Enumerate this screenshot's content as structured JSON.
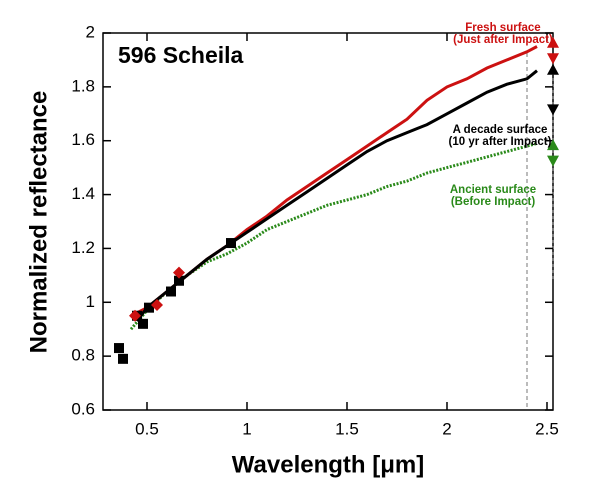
{
  "chart_data": {
    "type": "line",
    "title": "596 Scheila",
    "x_label": "Wavelength [μm]",
    "y_label": "Normalized reflectance",
    "xlim": [
      0.28,
      2.53
    ],
    "ylim": [
      0.6,
      2
    ],
    "xticks": [
      0.5,
      1,
      1.5,
      2,
      2.5
    ],
    "yticks": [
      0.6,
      0.8,
      1,
      1.2,
      1.4,
      1.6,
      1.8,
      2
    ],
    "vlines": [
      2.4
    ],
    "series": [
      {
        "color": "#2a8a1a",
        "marker": "dots",
        "x": [
          0.42,
          0.5,
          0.6,
          0.7,
          0.8,
          0.9,
          1.0,
          1.1,
          1.2,
          1.3,
          1.4,
          1.5,
          1.6,
          1.7,
          1.8,
          1.9,
          2.0,
          2.1,
          2.2,
          2.3,
          2.4,
          2.45
        ],
        "values": [
          0.9,
          0.97,
          1.04,
          1.1,
          1.15,
          1.18,
          1.22,
          1.27,
          1.3,
          1.33,
          1.36,
          1.38,
          1.4,
          1.43,
          1.45,
          1.48,
          1.5,
          1.52,
          1.54,
          1.56,
          1.58,
          1.59
        ]
      },
      {
        "color": "#cc1111",
        "marker": "line",
        "x": [
          0.42,
          0.5,
          0.6,
          0.7,
          0.8,
          0.9,
          1.0,
          1.1,
          1.2,
          1.3,
          1.4,
          1.5,
          1.6,
          1.7,
          1.8,
          1.9,
          2.0,
          2.1,
          2.2,
          2.3,
          2.4,
          2.45
        ],
        "values": [
          0.95,
          0.98,
          1.04,
          1.1,
          1.16,
          1.21,
          1.27,
          1.32,
          1.38,
          1.43,
          1.48,
          1.53,
          1.58,
          1.63,
          1.68,
          1.75,
          1.8,
          1.83,
          1.87,
          1.9,
          1.93,
          1.95
        ]
      },
      {
        "color": "#000000",
        "marker": "line",
        "x": [
          0.45,
          0.5,
          0.6,
          0.7,
          0.8,
          0.9,
          1.0,
          1.1,
          1.2,
          1.3,
          1.4,
          1.5,
          1.6,
          1.7,
          1.8,
          1.9,
          2.0,
          2.1,
          2.2,
          2.3,
          2.4,
          2.45
        ],
        "values": [
          0.93,
          0.98,
          1.04,
          1.1,
          1.16,
          1.21,
          1.26,
          1.31,
          1.36,
          1.41,
          1.46,
          1.51,
          1.56,
          1.6,
          1.63,
          1.66,
          1.7,
          1.74,
          1.78,
          1.81,
          1.83,
          1.86
        ]
      },
      {
        "color": "#000000",
        "marker": "square",
        "x": [
          0.36,
          0.38,
          0.45,
          0.48,
          0.51,
          0.62,
          0.66,
          0.92
        ],
        "values": [
          0.83,
          0.79,
          0.95,
          0.92,
          0.98,
          1.04,
          1.08,
          1.22
        ]
      },
      {
        "color": "#cc1111",
        "marker": "diamond",
        "x": [
          0.44,
          0.55,
          0.66
        ],
        "values": [
          0.95,
          0.99,
          1.11
        ]
      },
      {
        "color": "#cc1111",
        "marker": "triangle-up",
        "x": [
          2.53
        ],
        "values": [
          1.96
        ]
      },
      {
        "color": "#cc1111",
        "marker": "triangle-down",
        "x": [
          2.53
        ],
        "values": [
          1.91
        ]
      },
      {
        "color": "#000000",
        "marker": "triangle-up",
        "x": [
          2.53
        ],
        "values": [
          1.86
        ]
      },
      {
        "color": "#000000",
        "marker": "triangle-down",
        "x": [
          2.53
        ],
        "values": [
          1.72
        ]
      },
      {
        "color": "#2a8a1a",
        "marker": "triangle-up",
        "x": [
          2.53
        ],
        "values": [
          1.58
        ]
      },
      {
        "color": "#2a8a1a",
        "marker": "triangle-down",
        "x": [
          2.53
        ],
        "values": [
          1.53
        ]
      }
    ],
    "annotations": [
      {
        "color": "#cc1111",
        "lines": [
          "Fresh surface",
          "(Just after Impact)"
        ]
      },
      {
        "color": "#000000",
        "lines": [
          "A decade surface",
          "(10 yr after Impact)"
        ]
      },
      {
        "color": "#2a8a1a",
        "lines": [
          "Ancient surface",
          "(Before Impact)"
        ]
      }
    ]
  }
}
